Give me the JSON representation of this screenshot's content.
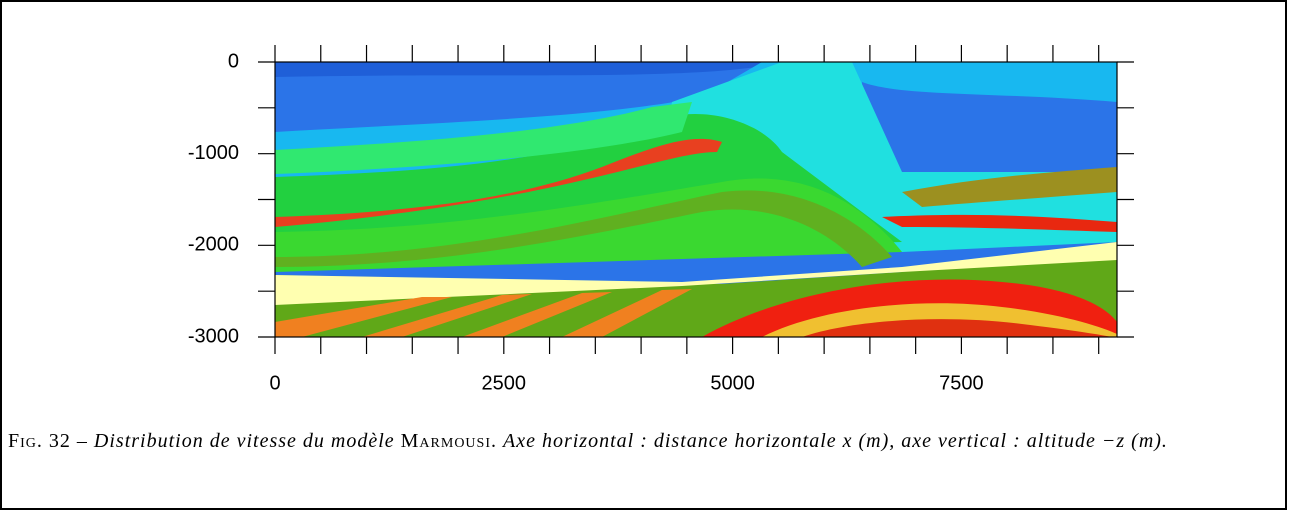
{
  "chart_data": {
    "type": "image",
    "xlim": [
      0,
      9200
    ],
    "xticks": [
      0,
      2500,
      5000,
      7500
    ],
    "xminorticks": [
      500,
      1000,
      1500,
      2000,
      3000,
      3500,
      4000,
      4500,
      5500,
      6000,
      6500,
      7000,
      8000,
      8500,
      9000
    ],
    "ylim": [
      -3000,
      0
    ],
    "yticks": [
      0,
      -1000,
      -2000,
      -3000
    ],
    "yminorticks": [
      -500,
      -1500,
      -2500
    ]
  },
  "caption": {
    "label": "Fig. 32 –",
    "text_1": "Distribution de vitesse du modèle",
    "name": "Marmousi.",
    "text_2": "Axe horizontal : distance horizontale x (m), axe vertical : altitude −z (m)."
  }
}
